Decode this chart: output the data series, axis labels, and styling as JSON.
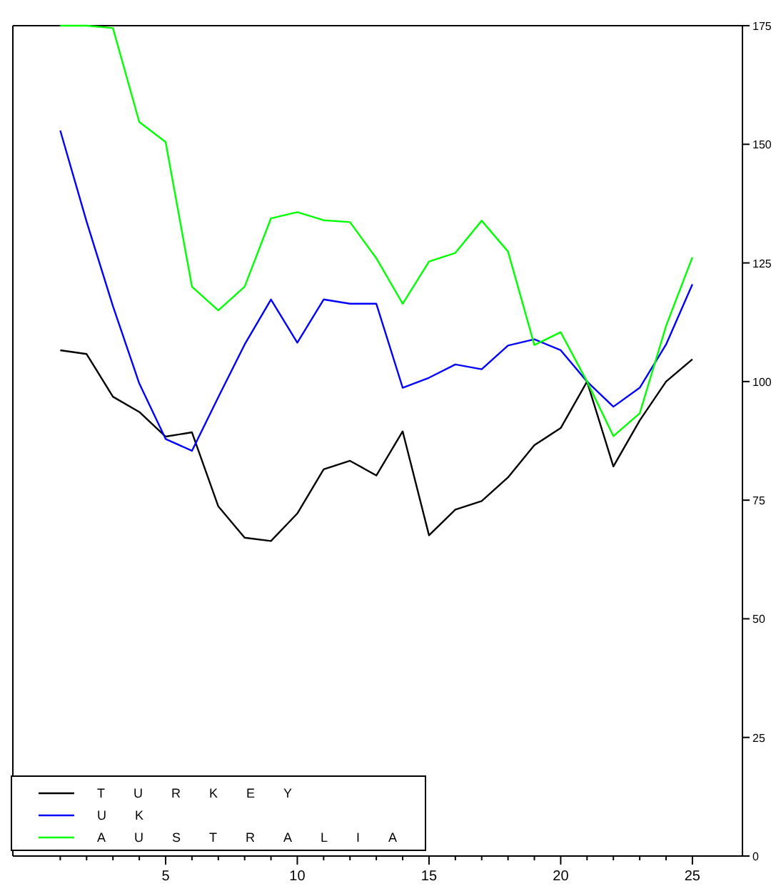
{
  "chart_data": {
    "type": "line",
    "x": [
      1,
      2,
      3,
      4,
      5,
      6,
      7,
      8,
      9,
      10,
      11,
      12,
      13,
      14,
      15,
      16,
      17,
      18,
      19,
      20,
      21,
      22,
      23,
      24,
      25
    ],
    "series": [
      {
        "name": "TURKEY",
        "color": "#000000",
        "values": [
          106.6,
          105.8,
          96.8,
          93.6,
          88.4,
          89.3,
          73.7,
          67.1,
          66.4,
          72.2,
          81.5,
          83.3,
          80.2,
          89.5,
          67.6,
          73,
          74.8,
          79.8,
          86.6,
          90.2,
          100,
          82.1,
          91.8,
          100,
          104.7
        ]
      },
      {
        "name": "UK",
        "color": "#0000ff",
        "values": [
          152.9,
          133.7,
          115.9,
          99.6,
          87.9,
          85.4,
          96.7,
          107.8,
          117.3,
          108.2,
          117.3,
          116.4,
          116.4,
          98.7,
          100.8,
          103.6,
          102.6,
          107.6,
          108.9,
          106.6,
          100,
          94.7,
          98.7,
          107.8,
          120.5
        ]
      },
      {
        "name": "AUSTRALIA",
        "color": "#00ff00",
        "values": [
          175,
          175,
          174.5,
          154.7,
          150.5,
          120,
          115,
          120,
          134.4,
          135.7,
          134,
          133.6,
          126,
          116.4,
          125.3,
          127.1,
          133.9,
          127.4,
          107.7,
          110.4,
          100,
          88.5,
          93.3,
          111.7,
          126.2
        ]
      }
    ],
    "xlim": [
      -0.8,
      26.9
    ],
    "xticks": [
      {
        "value": 1,
        "label": null
      },
      {
        "value": 2,
        "label": null
      },
      {
        "value": 3,
        "label": null
      },
      {
        "value": 4,
        "label": null
      },
      5,
      {
        "value": 6,
        "label": null
      },
      {
        "value": 7,
        "label": null
      },
      {
        "value": 8,
        "label": null
      },
      {
        "value": 9,
        "label": null
      },
      10,
      {
        "value": 11,
        "label": null
      },
      {
        "value": 12,
        "label": null
      },
      {
        "value": 13,
        "label": null
      },
      {
        "value": 14,
        "label": null
      },
      15,
      {
        "value": 16,
        "label": null
      },
      {
        "value": 17,
        "label": null
      },
      {
        "value": 18,
        "label": null
      },
      {
        "value": 19,
        "label": null
      },
      20,
      {
        "value": 21,
        "label": null
      },
      {
        "value": 22,
        "label": null
      },
      {
        "value": 23,
        "label": null
      },
      {
        "value": 24,
        "label": null
      },
      25
    ],
    "ylim": [
      0,
      175
    ],
    "yticks": [
      0,
      25,
      50,
      75,
      100,
      125,
      150,
      175
    ],
    "legend": "bottom left",
    "line_style": "solid",
    "marker": "none"
  }
}
